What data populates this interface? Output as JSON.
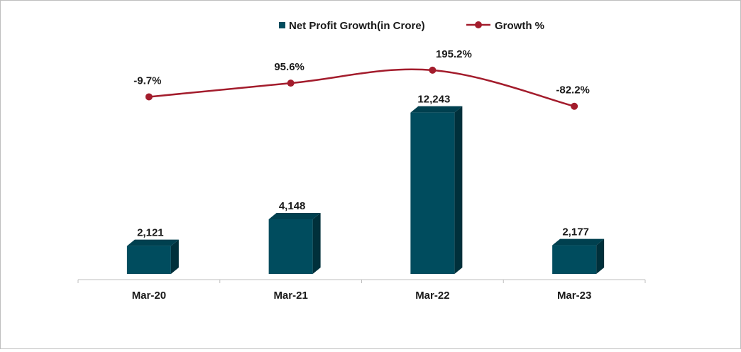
{
  "chart_data": {
    "type": "bar",
    "categories": [
      "Mar-20",
      "Mar-21",
      "Mar-22",
      "Mar-23"
    ],
    "series": [
      {
        "name": "Net Profit Growth(in Crore)",
        "kind": "bar",
        "values": [
          2121,
          4148,
          12243,
          2177
        ],
        "labels": [
          "2,121",
          "4,148",
          "12,243",
          "2,177"
        ],
        "color": "#004c5e"
      },
      {
        "name": "Growth %",
        "kind": "line",
        "values": [
          -9.7,
          95.6,
          195.2,
          -82.2
        ],
        "labels": [
          "-9.7%",
          "95.6%",
          "195.2%",
          "-82.2%"
        ],
        "color": "#a31c2c"
      }
    ],
    "legend_position": "top-center",
    "grid": false
  }
}
